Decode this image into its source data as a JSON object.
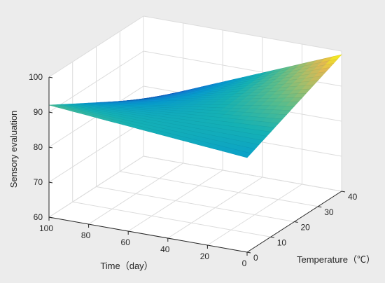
{
  "chart_data": {
    "type": "surface",
    "title": "",
    "xlabel": "Temperature（℃）",
    "ylabel": "Time（day）",
    "zlabel": "Sensory evaluation",
    "x_ticks": [
      0,
      10,
      20,
      30,
      40
    ],
    "y_ticks": [
      0,
      20,
      40,
      60,
      80,
      100
    ],
    "z_ticks": [
      60,
      70,
      80,
      90,
      100
    ],
    "xlim": [
      0,
      40
    ],
    "ylim": [
      0,
      100
    ],
    "zlim": [
      60,
      100
    ],
    "grid": true,
    "colormap": "parula",
    "corners": [
      {
        "temperature": 0,
        "time": 0,
        "sensory": 87
      },
      {
        "temperature": 40,
        "time": 0,
        "sensory": 99
      },
      {
        "temperature": 0,
        "time": 100,
        "sensory": 92
      },
      {
        "temperature": 40,
        "time": 100,
        "sensory": 76
      }
    ]
  },
  "style": {
    "background": "#ececec",
    "axes_background": "#ffffff",
    "grid_color": "#dcdcdc",
    "axis_color": "#262626"
  }
}
